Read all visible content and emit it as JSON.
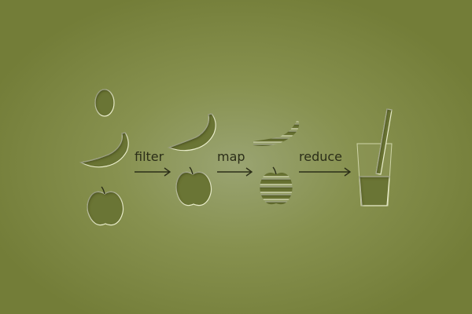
{
  "diagram": {
    "operations": [
      {
        "id": "filter",
        "label": "filter"
      },
      {
        "id": "map",
        "label": "map"
      },
      {
        "id": "reduce",
        "label": "reduce"
      }
    ],
    "stages": [
      {
        "id": "input",
        "items": [
          "egg-icon",
          "banana-icon",
          "apple-icon"
        ]
      },
      {
        "id": "filtered",
        "items": [
          "banana-icon",
          "apple-icon"
        ]
      },
      {
        "id": "mapped",
        "items": [
          "sliced-banana-icon",
          "sliced-apple-icon"
        ]
      },
      {
        "id": "reduced",
        "items": [
          "smoothie-glass-icon"
        ]
      }
    ],
    "colors": {
      "background_center": "#9aa472",
      "background_edge": "#737d38",
      "icon_fill": "#6a7434",
      "icon_highlight": "#eef2cf",
      "text": "#2b2e18"
    }
  }
}
